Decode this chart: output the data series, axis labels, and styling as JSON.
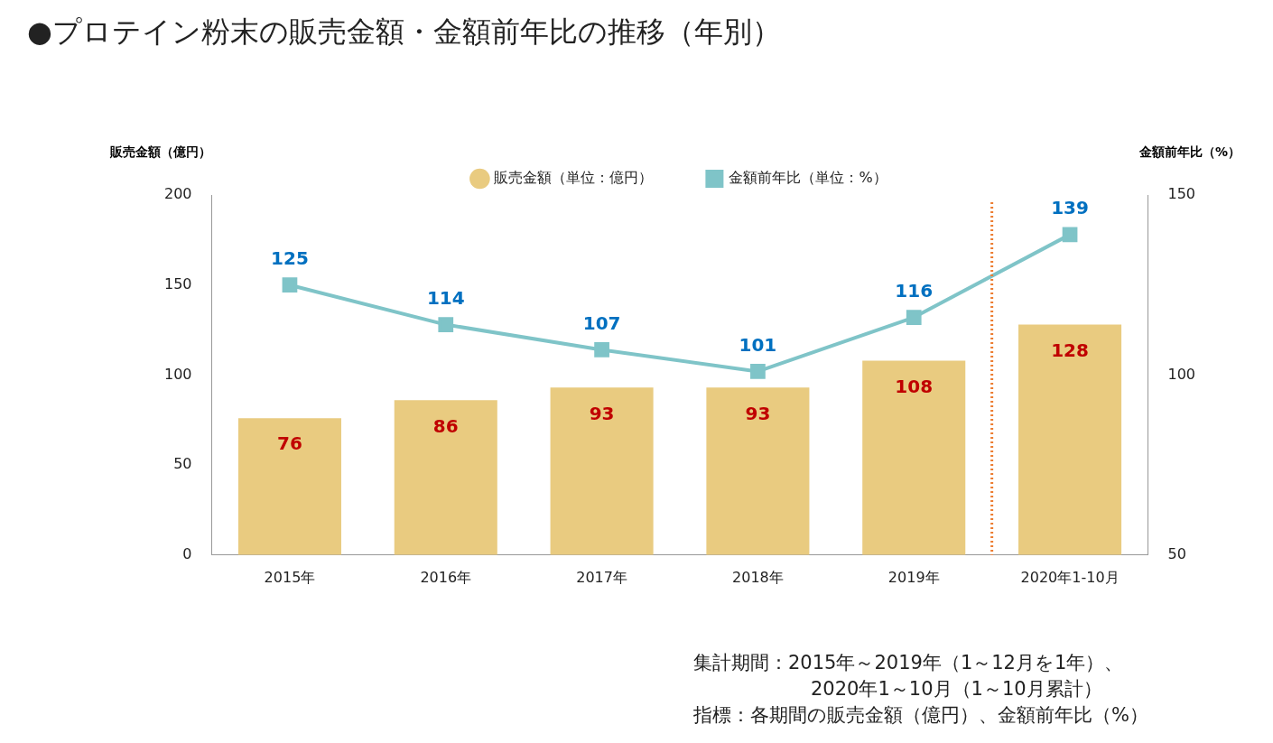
{
  "chart_data": {
    "type": "bar",
    "title": "●プロテイン粉末の販売金額・金額前年比の推移（年別）",
    "ylabel": "販売金額（億円）",
    "y2label": "金額前年比（%）",
    "categories": [
      "2015年",
      "2016年",
      "2017年",
      "2018年",
      "2019年",
      "2020年1-10月"
    ],
    "series": [
      {
        "name": "販売金額（単位：億円）",
        "color": "#e9cb80",
        "values": [
          76,
          86,
          93,
          93,
          108,
          128
        ]
      },
      {
        "name": "金額前年比（単位：%）",
        "type": "line",
        "axis": "y2",
        "color": "#7fc4c8",
        "marker": "square",
        "values": [
          125,
          114,
          107,
          101,
          116,
          139
        ]
      }
    ],
    "ylim": [
      0,
      200
    ],
    "yticks": [
      0,
      50,
      100,
      150,
      200
    ],
    "y2lim": [
      50,
      150
    ],
    "y2ticks": [
      50,
      100,
      150
    ],
    "ref_lines": [
      {
        "axis": "x",
        "value": "2020年1-10月",
        "color": "#ed7d31",
        "line_style": "dotted"
      }
    ],
    "data_labels": true,
    "grid": false,
    "legend": "top",
    "annotations": [
      "集計期間：2015年～2019年（1～12月を1年）、",
      "2020年1～10月（1～10月累計）",
      "指標：各期間の販売金額（億円）、金額前年比（%）"
    ]
  }
}
